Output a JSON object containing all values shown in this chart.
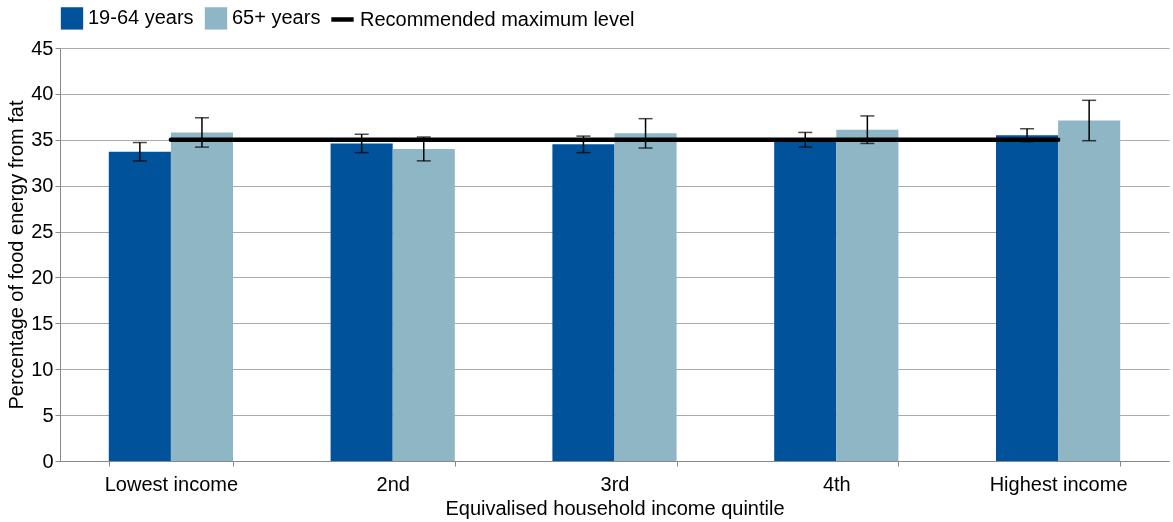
{
  "chart_data": {
    "type": "bar",
    "xlabel": "Equivalised household income quintile",
    "ylabel": "Percentage of food energy from fat",
    "categories": [
      "Lowest income",
      "2nd",
      "3rd",
      "4th",
      "Highest income"
    ],
    "series": [
      {
        "name": "19-64 years",
        "color": "#00529b",
        "values": [
          33.7,
          34.6,
          34.5,
          35.0,
          35.5
        ],
        "errors": [
          1.0,
          1.0,
          0.9,
          0.8,
          0.7
        ]
      },
      {
        "name": "65+ years",
        "color": "#8fb6c5",
        "values": [
          35.8,
          34.0,
          35.7,
          36.1,
          37.1
        ],
        "errors": [
          1.6,
          1.3,
          1.6,
          1.5,
          2.2
        ]
      },
      {
        "name": "Recommended maximum level",
        "type": "line",
        "color": "#000000",
        "values": [
          35,
          35,
          35,
          35,
          35
        ]
      }
    ],
    "ylim": [
      0,
      45
    ],
    "yticks": [
      0,
      5,
      10,
      15,
      20,
      25,
      30,
      35,
      40,
      45
    ],
    "grid": "y",
    "legend": "top"
  }
}
